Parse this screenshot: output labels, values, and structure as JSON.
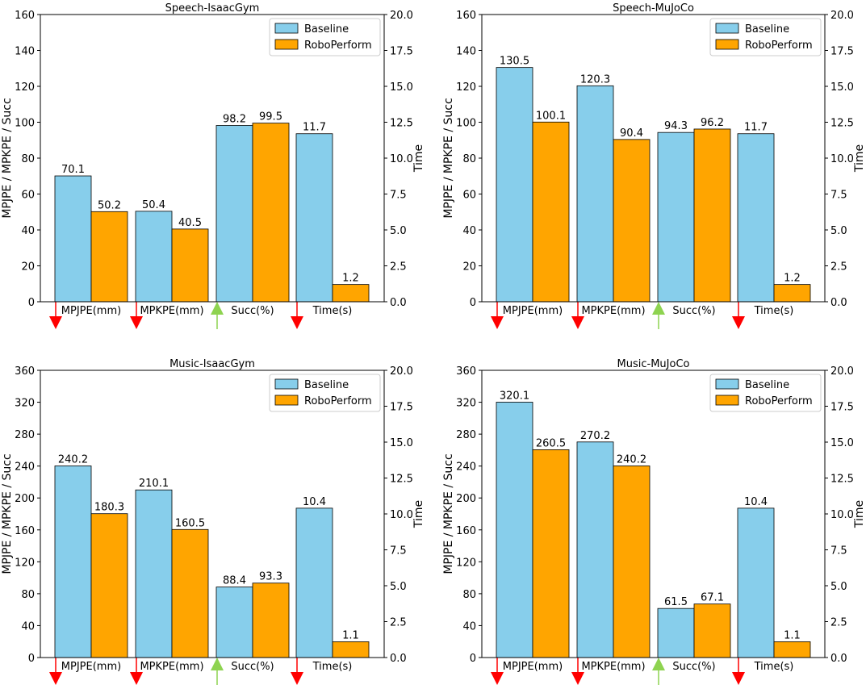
{
  "chart_data": [
    {
      "type": "bar",
      "title": "Speech-IsaacGym",
      "categories": [
        "MPJPE(mm)",
        "MPKPE(mm)",
        "Succ(%)",
        "Time(s)"
      ],
      "trend": [
        "down",
        "down",
        "up",
        "down"
      ],
      "ylabel": "MPJPE / MPKPE / Succ",
      "y2label": "Time",
      "ylim": [
        0,
        160
      ],
      "yticks": [
        "0",
        "20",
        "40",
        "60",
        "80",
        "100",
        "120",
        "140",
        "160"
      ],
      "y2lim": [
        0,
        20
      ],
      "y2ticks": [
        "0.0",
        "2.5",
        "5.0",
        "7.5",
        "10.0",
        "12.5",
        "15.0",
        "17.5",
        "20.0"
      ],
      "legend_position": "top-right",
      "series": [
        {
          "name": "Baseline",
          "color": "#87ceeb",
          "values": [
            70.1,
            50.4,
            98.2,
            11.7
          ],
          "labels": [
            "70.1",
            "50.4",
            "98.2",
            "11.7"
          ]
        },
        {
          "name": "RoboPerform",
          "color": "#ffa500",
          "values": [
            50.2,
            40.5,
            99.5,
            1.2
          ],
          "labels": [
            "50.2",
            "40.5",
            "99.5",
            "1.2"
          ]
        }
      ]
    },
    {
      "type": "bar",
      "title": "Speech-MuJoCo",
      "categories": [
        "MPJPE(mm)",
        "MPKPE(mm)",
        "Succ(%)",
        "Time(s)"
      ],
      "trend": [
        "down",
        "down",
        "up",
        "down"
      ],
      "ylabel": "MPJPE / MPKPE / Succ",
      "y2label": "Time",
      "ylim": [
        0,
        160
      ],
      "yticks": [
        "0",
        "20",
        "40",
        "60",
        "80",
        "100",
        "120",
        "140",
        "160"
      ],
      "y2lim": [
        0,
        20
      ],
      "y2ticks": [
        "0.0",
        "2.5",
        "5.0",
        "7.5",
        "10.0",
        "12.5",
        "15.0",
        "17.5",
        "20.0"
      ],
      "legend_position": "top-right",
      "series": [
        {
          "name": "Baseline",
          "color": "#87ceeb",
          "values": [
            130.5,
            120.3,
            94.3,
            11.7
          ],
          "labels": [
            "130.5",
            "120.3",
            "94.3",
            "11.7"
          ]
        },
        {
          "name": "RoboPerform",
          "color": "#ffa500",
          "values": [
            100.1,
            90.4,
            96.2,
            1.2
          ],
          "labels": [
            "100.1",
            "90.4",
            "96.2",
            "1.2"
          ]
        }
      ]
    },
    {
      "type": "bar",
      "title": "Music-IsaacGym",
      "categories": [
        "MPJPE(mm)",
        "MPKPE(mm)",
        "Succ(%)",
        "Time(s)"
      ],
      "trend": [
        "down",
        "down",
        "up",
        "down"
      ],
      "ylabel": "MPJPE / MPKPE / Succ",
      "y2label": "Time",
      "ylim": [
        0,
        360
      ],
      "yticks": [
        "0",
        "40",
        "80",
        "120",
        "160",
        "200",
        "240",
        "280",
        "320",
        "360"
      ],
      "y2lim": [
        0,
        20
      ],
      "y2ticks": [
        "0.0",
        "2.5",
        "5.0",
        "7.5",
        "10.0",
        "12.5",
        "15.0",
        "17.5",
        "20.0"
      ],
      "legend_position": "top-right",
      "series": [
        {
          "name": "Baseline",
          "color": "#87ceeb",
          "values": [
            240.2,
            210.1,
            88.4,
            10.4
          ],
          "labels": [
            "240.2",
            "210.1",
            "88.4",
            "10.4"
          ]
        },
        {
          "name": "RoboPerform",
          "color": "#ffa500",
          "values": [
            180.3,
            160.5,
            93.3,
            1.1
          ],
          "labels": [
            "180.3",
            "160.5",
            "93.3",
            "1.1"
          ]
        }
      ]
    },
    {
      "type": "bar",
      "title": "Music-MuJoCo",
      "categories": [
        "MPJPE(mm)",
        "MPKPE(mm)",
        "Succ(%)",
        "Time(s)"
      ],
      "trend": [
        "down",
        "down",
        "up",
        "down"
      ],
      "ylabel": "MPJPE / MPKPE / Succ",
      "y2label": "Time",
      "ylim": [
        0,
        360
      ],
      "yticks": [
        "0",
        "40",
        "80",
        "120",
        "160",
        "200",
        "240",
        "280",
        "320",
        "360"
      ],
      "y2lim": [
        0,
        20
      ],
      "y2ticks": [
        "0.0",
        "2.5",
        "5.0",
        "7.5",
        "10.0",
        "12.5",
        "15.0",
        "17.5",
        "20.0"
      ],
      "legend_position": "top-right",
      "series": [
        {
          "name": "Baseline",
          "color": "#87ceeb",
          "values": [
            320.1,
            270.2,
            61.5,
            10.4
          ],
          "labels": [
            "320.1",
            "270.2",
            "61.5",
            "10.4"
          ]
        },
        {
          "name": "RoboPerform",
          "color": "#ffa500",
          "values": [
            260.5,
            240.2,
            67.1,
            1.1
          ],
          "labels": [
            "260.5",
            "240.2",
            "67.1",
            "1.1"
          ]
        }
      ]
    }
  ],
  "colors": {
    "arrow_down": "#ff0000",
    "arrow_up": "#8ed350",
    "axis": "#000000"
  }
}
